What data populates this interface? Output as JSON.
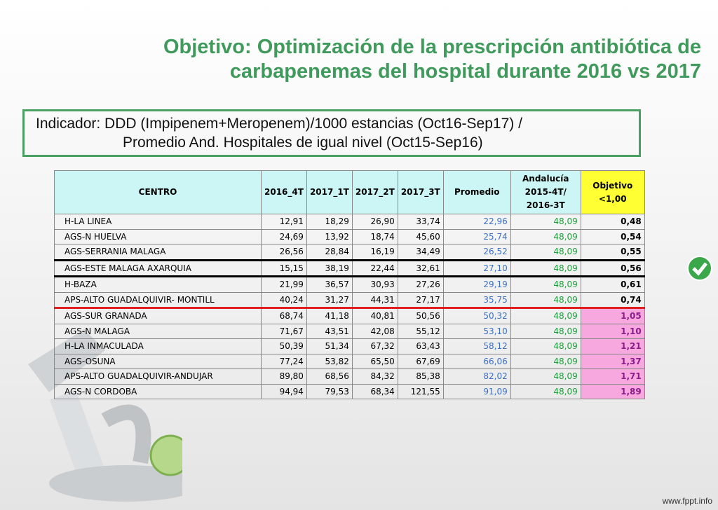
{
  "header": {
    "title_lines": [
      "Objetivo:  Optimización de la prescripción antibiótica de",
      "carbapenemas del hospital durante 2016 vs 2017"
    ]
  },
  "indicator": {
    "lines": [
      "Indicador: DDD (Impipenem+Meropenem)/1000 estancias (Oct16-Sep17) /",
      "Promedio And. Hospitales de igual nivel (Oct15-Sep16)"
    ]
  },
  "table": {
    "columns": [
      "CENTRO",
      "2016_4T",
      "2017_1T",
      "2017_2T",
      "2017_3T",
      "Promedio",
      "Andalucía 2015-4T/ 2016-3T",
      "Objetivo <1,00"
    ],
    "rows": [
      [
        "H-LA LINEA",
        "12,91",
        "18,29",
        "26,90",
        "33,74",
        "22,96",
        "48,09",
        "0,48"
      ],
      [
        "AGS-N HUELVA",
        "24,69",
        "13,92",
        "18,74",
        "45,60",
        "25,74",
        "48,09",
        "0,54"
      ],
      [
        "AGS-SERRANIA MALAGA",
        "26,56",
        "28,84",
        "16,19",
        "34,49",
        "26,52",
        "48,09",
        "0,55"
      ],
      [
        "AGS-ESTE MALAGA AXARQUIA",
        "15,15",
        "38,19",
        "22,44",
        "32,61",
        "27,10",
        "48,09",
        "0,56"
      ],
      [
        "H-BAZA",
        "21,99",
        "36,57",
        "30,93",
        "27,26",
        "29,19",
        "48,09",
        "0,61"
      ],
      [
        "APS-ALTO GUADALQUIVIR- MONTILL",
        "40,24",
        "31,27",
        "44,31",
        "27,17",
        "35,75",
        "48,09",
        "0,74"
      ],
      [
        "AGS-SUR GRANADA",
        "68,74",
        "41,18",
        "40,81",
        "50,56",
        "50,32",
        "48,09",
        "1,05"
      ],
      [
        "AGS-N MALAGA",
        "71,67",
        "43,51",
        "42,08",
        "55,12",
        "53,10",
        "48,09",
        "1,10"
      ],
      [
        "H-LA INMACULADA",
        "50,39",
        "51,34",
        "67,32",
        "63,43",
        "58,12",
        "48,09",
        "1,21"
      ],
      [
        "AGS-OSUNA",
        "77,24",
        "53,82",
        "65,50",
        "67,69",
        "66,06",
        "48,09",
        "1,37"
      ],
      [
        "APS-ALTO GUADALQUIVIR-ANDUJAR",
        "89,80",
        "68,56",
        "84,32",
        "85,38",
        "82,02",
        "48,09",
        "1,71"
      ],
      [
        "AGS-N CORDOBA",
        "94,94",
        "79,53",
        "68,34",
        "121,55",
        "91,09",
        "48,09",
        "1,89"
      ]
    ]
  },
  "footer": {
    "site": "www.fppt.info"
  }
}
